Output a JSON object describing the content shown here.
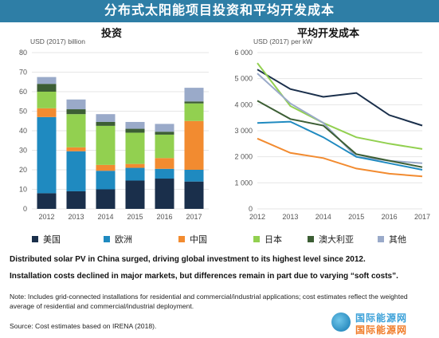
{
  "banner_title": "分布式太阳能项目投资和平均开发成本",
  "colors": {
    "美国": "#1a2f4b",
    "欧洲": "#1f8ac0",
    "中国": "#f28b30",
    "日本": "#92d050",
    "澳大利亚": "#3c5e34",
    "其他": "#9aaac9",
    "banner": "#2e7ea6"
  },
  "legend": [
    "美国",
    "欧洲",
    "中国",
    "日本",
    "澳大利亚",
    "其他"
  ],
  "chart_data": [
    {
      "type": "bar",
      "stacked": true,
      "title": "投资",
      "ylabel": "USD (2017) billion",
      "categories": [
        "2012",
        "2013",
        "2014",
        "2015",
        "2016",
        "2017"
      ],
      "ylim": [
        0,
        80
      ],
      "yticks": [
        0,
        10,
        20,
        30,
        40,
        50,
        60,
        70,
        80
      ],
      "series": [
        {
          "name": "美国",
          "values": [
            8,
            9,
            10,
            14.5,
            15.5,
            14
          ]
        },
        {
          "name": "欧洲",
          "values": [
            39,
            20.5,
            9.5,
            6.5,
            5,
            6
          ]
        },
        {
          "name": "中国",
          "values": [
            4.5,
            2,
            3,
            2,
            5.5,
            25
          ]
        },
        {
          "name": "日本",
          "values": [
            8.5,
            17,
            20,
            16,
            12,
            9
          ]
        },
        {
          "name": "澳大利亚",
          "values": [
            4,
            2.5,
            2,
            2,
            1.5,
            1
          ]
        },
        {
          "name": "其他",
          "values": [
            3.5,
            5,
            4,
            3.5,
            4,
            7
          ]
        }
      ]
    },
    {
      "type": "line",
      "title": "平均开发成本",
      "ylabel": "USD (2017) per kW",
      "x": [
        "2012",
        "2013",
        "2014",
        "2015",
        "2016",
        "2017"
      ],
      "ylim": [
        0,
        6000
      ],
      "yticks": [
        "0",
        "1 000",
        "2 000",
        "3 000",
        "4 000",
        "5 000",
        "6 000"
      ],
      "series": [
        {
          "name": "美国",
          "values": [
            5350,
            4600,
            4300,
            4450,
            3600,
            3200
          ]
        },
        {
          "name": "日本",
          "values": [
            5600,
            3950,
            3300,
            2750,
            2500,
            2300
          ]
        },
        {
          "name": "其他",
          "values": [
            5200,
            4050,
            3300,
            2000,
            1850,
            1750
          ]
        },
        {
          "name": "澳大利亚",
          "values": [
            4150,
            3450,
            3200,
            2100,
            1850,
            1600
          ]
        },
        {
          "name": "欧洲",
          "values": [
            3300,
            3350,
            2750,
            2000,
            1750,
            1500
          ]
        },
        {
          "name": "中国",
          "values": [
            2700,
            2150,
            1950,
            1550,
            1350,
            1250
          ]
        }
      ]
    }
  ],
  "caption1": "Distributed solar PV in China surged, driving global investment to its highest level since 2012.",
  "caption2": "Installation costs declined in major markets, but differences remain in part due to varying “soft costs”.",
  "note": "Note: Includes grid-connected installations for residential and commercial/industrial applications; cost estimates reflect the weighted average of residential and commercial/industrial deployment.",
  "source": "Source: Cost estimates based on IRENA (2018).",
  "watermark": {
    "line1": "国际能源网",
    "line2": "国际能源网"
  }
}
